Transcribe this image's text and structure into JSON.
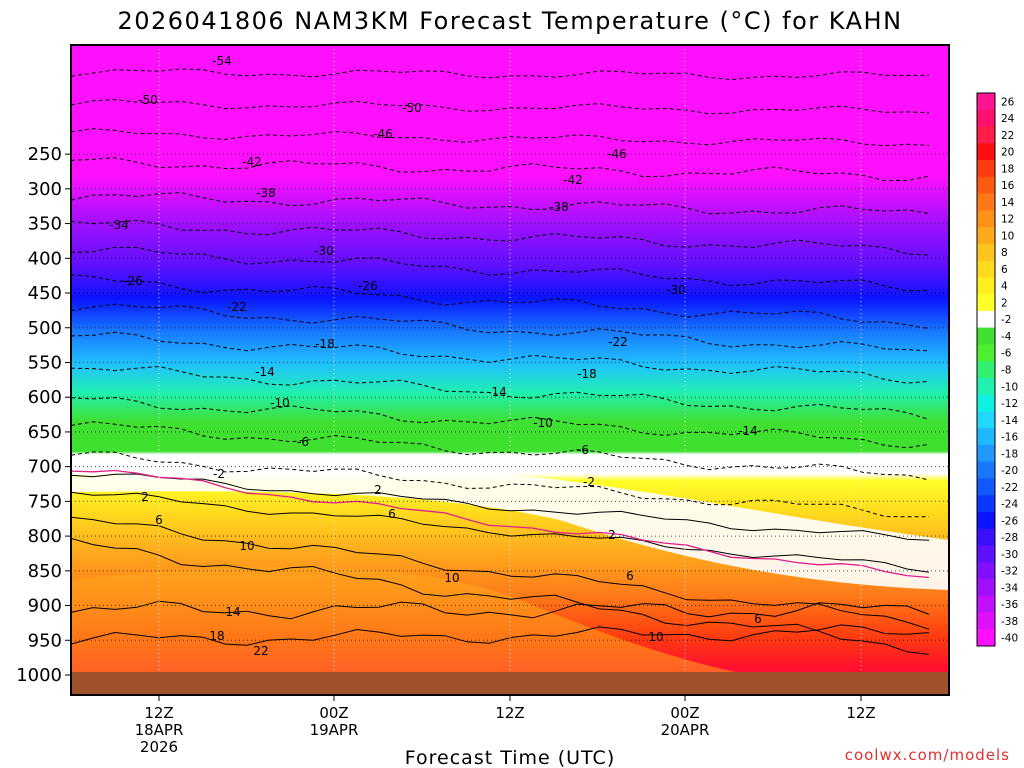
{
  "chart_data": {
    "type": "heatmap",
    "title": "2026041806 NAM3KM Forecast Temperature (°C) for KAHN",
    "xlabel": "Forecast Time (UTC)",
    "ylabel": "",
    "y_axis": {
      "ticks": [
        250,
        300,
        350,
        400,
        450,
        500,
        550,
        600,
        650,
        700,
        750,
        800,
        850,
        900,
        950,
        1000
      ],
      "tick_labels": [
        "250",
        "300",
        "350",
        "400",
        "450",
        "500",
        "550",
        "600",
        "650",
        "700",
        "750",
        "800",
        "850",
        "900",
        "950",
        "1000"
      ]
    },
    "x_axis": {
      "ticks": [
        {
          "label": "12Z",
          "sub1": "18APR",
          "sub2": "2026"
        },
        {
          "label": "00Z",
          "sub1": "19APR",
          "sub2": ""
        },
        {
          "label": "12Z",
          "sub1": "",
          "sub2": ""
        },
        {
          "label": "00Z",
          "sub1": "20APR",
          "sub2": ""
        },
        {
          "label": "12Z",
          "sub1": "",
          "sub2": ""
        }
      ]
    },
    "colorbar": {
      "labels": [
        "26",
        "24",
        "22",
        "20",
        "18",
        "16",
        "14",
        "12",
        "10",
        "8",
        "6",
        "4",
        "2",
        "-2",
        "-4",
        "-6",
        "-8",
        "-10",
        "-12",
        "-14",
        "-16",
        "-18",
        "-20",
        "-22",
        "-24",
        "-26",
        "-28",
        "-30",
        "-32",
        "-34",
        "-36",
        "-38",
        "-40"
      ],
      "colors": [
        "#ff1493",
        "#ff0f6e",
        "#ff1e48",
        "#ff0f0f",
        "#ff3c10",
        "#ff5a12",
        "#ff7818",
        "#ff9018",
        "#ffaa1e",
        "#ffc41e",
        "#ffda1e",
        "#ffef1e",
        "#ffff2a",
        "#ffffff",
        "#40e030",
        "#50ee30",
        "#30f070",
        "#20f0b0",
        "#10f0e0",
        "#20d8ff",
        "#20b8ff",
        "#2098ff",
        "#1878ff",
        "#1058ff",
        "#0a38ff",
        "#0a14ff",
        "#3a10ff",
        "#5e10ff",
        "#8010ff",
        "#a010ff",
        "#c010ff",
        "#e010ff",
        "#ff10ff"
      ]
    },
    "contour_labels": [
      "-54",
      "-50",
      "-50",
      "-46",
      "-46",
      "-42",
      "-42",
      "-38",
      "-38",
      "-34",
      "-30",
      "-30",
      "-26",
      "-26",
      "-22",
      "-22",
      "-18",
      "-18",
      "-14",
      "-14",
      "-14",
      "-10",
      "-10",
      "-6",
      "-6",
      "-2",
      "-2",
      "2",
      "2",
      "2",
      "6",
      "6",
      "6",
      "6",
      "10",
      "10",
      "10",
      "14",
      "18",
      "22"
    ],
    "ground_color": "#a0522d",
    "grid": true
  },
  "credit": "coolwx.com/models"
}
